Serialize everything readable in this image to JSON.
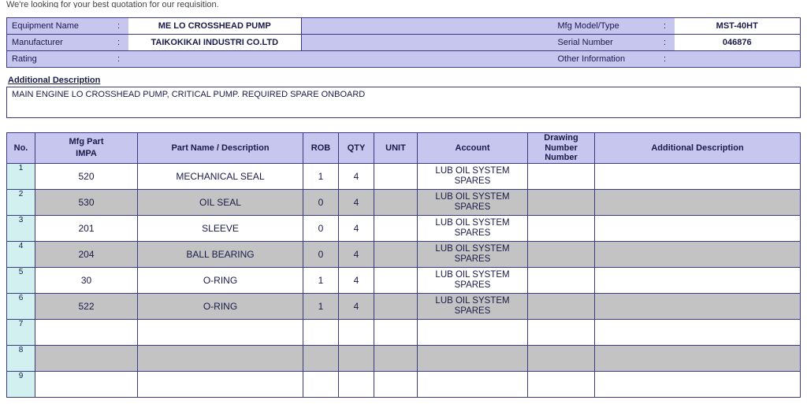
{
  "header_text": "We're looking for your best quotation for our requisition.",
  "info": {
    "equipment_name_label": "Equipment Name",
    "equipment_name": "ME LO CROSSHEAD PUMP",
    "manufacturer_label": "Manufacturer",
    "manufacturer": "TAIKOKIKAI INDUSTRI CO.LTD",
    "rating_label": "Rating",
    "rating": "",
    "mfg_model_label": "Mfg Model/Type",
    "mfg_model": "MST-40HT",
    "serial_label": "Serial Number",
    "serial": "046876",
    "other_info_label": "Other Information",
    "other_info": ""
  },
  "additional_desc_title": "Additional Description",
  "additional_desc": "MAIN ENGINE LO CROSSHEAD PUMP, CRITICAL PUMP. REQUIRED SPARE ONBOARD",
  "columns": {
    "no": "No.",
    "mfg_part": "Mfg Part",
    "mfg_part_sub": "IMPA",
    "part_name": "Part Name / Description",
    "rob": "ROB",
    "qty": "QTY",
    "unit": "UNIT",
    "account": "Account",
    "drawing": "Drawing Number Number",
    "add_desc": "Additional Description"
  },
  "rows": [
    {
      "no": "1",
      "mfg_part": "520",
      "name": "MECHANICAL SEAL",
      "rob": "1",
      "qty": "4",
      "unit": "",
      "account": "LUB OIL SYSTEM SPARES",
      "drawing": "",
      "desc": ""
    },
    {
      "no": "2",
      "mfg_part": "530",
      "name": "OIL SEAL",
      "rob": "0",
      "qty": "4",
      "unit": "",
      "account": "LUB OIL SYSTEM SPARES",
      "drawing": "",
      "desc": ""
    },
    {
      "no": "3",
      "mfg_part": "201",
      "name": "SLEEVE",
      "rob": "0",
      "qty": "4",
      "unit": "",
      "account": "LUB OIL SYSTEM SPARES",
      "drawing": "",
      "desc": ""
    },
    {
      "no": "4",
      "mfg_part": "204",
      "name": "BALL BEARING",
      "rob": "0",
      "qty": "4",
      "unit": "",
      "account": "LUB OIL SYSTEM SPARES",
      "drawing": "",
      "desc": ""
    },
    {
      "no": "5",
      "mfg_part": "30",
      "name": "O-RING",
      "rob": "1",
      "qty": "4",
      "unit": "",
      "account": "LUB OIL SYSTEM SPARES",
      "drawing": "",
      "desc": ""
    },
    {
      "no": "6",
      "mfg_part": "522",
      "name": "O-RING",
      "rob": "1",
      "qty": "4",
      "unit": "",
      "account": "LUB OIL SYSTEM SPARES",
      "drawing": "",
      "desc": ""
    },
    {
      "no": "7",
      "mfg_part": "",
      "name": "",
      "rob": "",
      "qty": "",
      "unit": "",
      "account": "",
      "drawing": "",
      "desc": ""
    },
    {
      "no": "8",
      "mfg_part": "",
      "name": "",
      "rob": "",
      "qty": "",
      "unit": "",
      "account": "",
      "drawing": "",
      "desc": ""
    },
    {
      "no": "9",
      "mfg_part": "",
      "name": "",
      "rob": "",
      "qty": "",
      "unit": "",
      "account": "",
      "drawing": "",
      "desc": ""
    }
  ],
  "col_widths": {
    "no": "36px",
    "mfg_part": "130px",
    "part_name": "210px",
    "rob": "45px",
    "qty": "45px",
    "unit": "55px",
    "account": "140px",
    "drawing": "85px",
    "add_desc": "auto"
  }
}
